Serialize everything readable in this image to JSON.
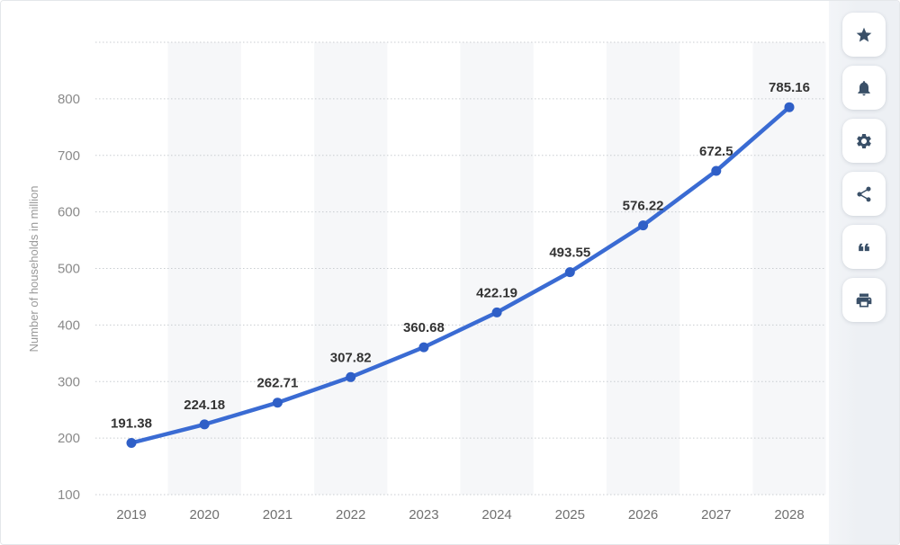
{
  "chart_data": {
    "type": "line",
    "title": "",
    "xlabel": "",
    "ylabel": "Number of households in million",
    "categories": [
      "2019",
      "2020",
      "2021",
      "2022",
      "2023",
      "2024",
      "2025",
      "2026",
      "2027",
      "2028"
    ],
    "series": [
      {
        "name": "Number of households",
        "values": [
          191.38,
          224.18,
          262.71,
          307.82,
          360.68,
          422.19,
          493.55,
          576.22,
          672.5,
          785.16
        ]
      }
    ],
    "data_labels": [
      "191.38",
      "224.18",
      "262.71",
      "307.82",
      "360.68",
      "422.19",
      "493.55",
      "576.22",
      "672.5",
      "785.16"
    ],
    "ylim": [
      100,
      900
    ],
    "yticks": [
      100,
      200,
      300,
      400,
      500,
      600,
      700,
      800
    ],
    "grid": "horizontal-dotted",
    "legend": "none",
    "striped_categories": [
      "2020",
      "2022",
      "2024",
      "2026",
      "2028"
    ],
    "colors": {
      "line": "#3a6bd3",
      "marker": "#2f5fc7",
      "data_label": "#333333",
      "y_tick_label": "#8a8a8a",
      "x_tick_label": "#707070",
      "axis_title": "#999999",
      "gridline": "#c9cdd1",
      "band": "#f6f7f9"
    }
  },
  "sidebar": {
    "buttons": [
      {
        "name": "favorite",
        "icon": "star-icon"
      },
      {
        "name": "notifications",
        "icon": "bell-icon"
      },
      {
        "name": "settings",
        "icon": "gear-icon"
      },
      {
        "name": "share",
        "icon": "share-icon"
      },
      {
        "name": "citation",
        "icon": "quote-icon"
      },
      {
        "name": "print",
        "icon": "printer-icon"
      }
    ]
  }
}
